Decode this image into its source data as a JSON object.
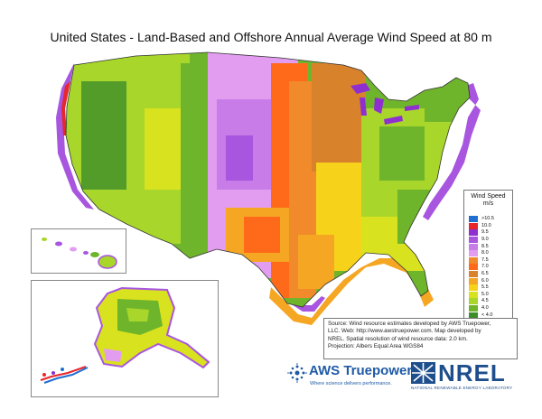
{
  "title": "United States - Land-Based and Offshore Annual Average Wind Speed at 80 m",
  "legend": {
    "title_line1": "Wind Speed",
    "title_line2": "m/s",
    "items": [
      {
        "label": ">10.5",
        "color": "#1f6fd1"
      },
      {
        "label": "10.0",
        "color": "#e8262c"
      },
      {
        "label": "9.5",
        "color": "#8f2fd0"
      },
      {
        "label": "9.0",
        "color": "#a855e0"
      },
      {
        "label": "8.5",
        "color": "#c77ce8"
      },
      {
        "label": "8.0",
        "color": "#e39df0"
      },
      {
        "label": "7.5",
        "color": "#f08a2a"
      },
      {
        "label": "7.0",
        "color": "#ff6a1a"
      },
      {
        "label": "6.5",
        "color": "#d8822c"
      },
      {
        "label": "6.0",
        "color": "#f5a623"
      },
      {
        "label": "5.5",
        "color": "#f6d21b"
      },
      {
        "label": "5.0",
        "color": "#d9e21e"
      },
      {
        "label": "4.5",
        "color": "#a8d62a"
      },
      {
        "label": "4.0",
        "color": "#6fb52c"
      },
      {
        "label": "< 4.0",
        "color": "#3d8d2b"
      }
    ]
  },
  "source": {
    "line1": "Source: Wind resource estimates developed by AWS Truepower,",
    "line2": "LLC.  Web: http://www.awstruepower.com. Map developed by",
    "line3": "NREL.  Spatial resolution of wind resource data: 2.0 km.",
    "line4": "Projection: Albers Equal Area WGS84"
  },
  "logos": {
    "aws_name": "AWS Truepower",
    "aws_tm": "™",
    "aws_tagline": "Where science delivers performance.",
    "nrel_name": "NREL",
    "nrel_subtitle": "NATIONAL RENEWABLE ENERGY LABORATORY"
  }
}
